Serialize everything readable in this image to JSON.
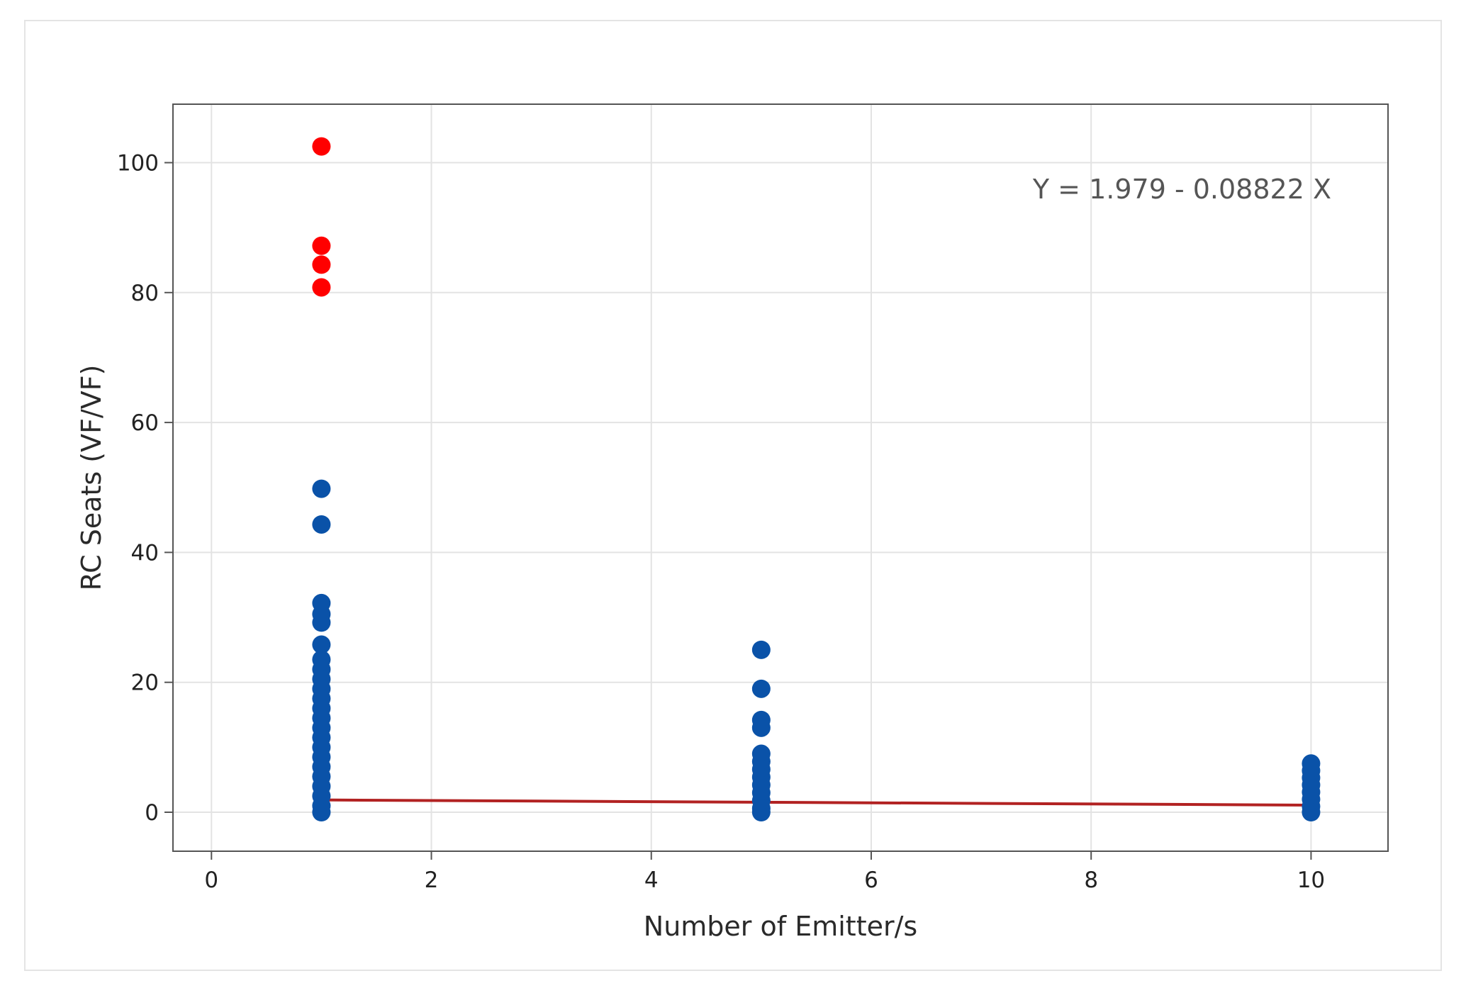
{
  "chart_data": {
    "type": "scatter",
    "title": "",
    "xlabel": "Number of Emitter/s",
    "ylabel": "RC Seats (VF/VF)",
    "xlim": [
      -0.35,
      10.7
    ],
    "ylim": [
      -6,
      109
    ],
    "xticks": [
      0,
      2,
      4,
      6,
      8,
      10
    ],
    "yticks": [
      0,
      20,
      40,
      60,
      80,
      100
    ],
    "grid": true,
    "legend": "none",
    "annotation": "Y = 1.979 - 0.08822 X",
    "series": [
      {
        "color": "#0a52a8",
        "points": [
          [
            1,
            49.8
          ],
          [
            1,
            44.3
          ],
          [
            1,
            32.2
          ],
          [
            1,
            30.5
          ],
          [
            1,
            29.2
          ],
          [
            1,
            25.8
          ],
          [
            1,
            23.5
          ],
          [
            1,
            22
          ],
          [
            1,
            20.5
          ],
          [
            1,
            19
          ],
          [
            1,
            17.5
          ],
          [
            1,
            16
          ],
          [
            1,
            14.5
          ],
          [
            1,
            13
          ],
          [
            1,
            11.5
          ],
          [
            1,
            10
          ],
          [
            1,
            8.5
          ],
          [
            1,
            7
          ],
          [
            1,
            5.5
          ],
          [
            1,
            4
          ],
          [
            1,
            2.5
          ],
          [
            1,
            1
          ],
          [
            1,
            0
          ],
          [
            5,
            25
          ],
          [
            5,
            19
          ],
          [
            5,
            14.2
          ],
          [
            5,
            13
          ],
          [
            5,
            9
          ],
          [
            5,
            7.8
          ],
          [
            5,
            6.6
          ],
          [
            5,
            5.4
          ],
          [
            5,
            4.2
          ],
          [
            5,
            3
          ],
          [
            5,
            1.8
          ],
          [
            5,
            0.6
          ],
          [
            5,
            0
          ],
          [
            10,
            7.5
          ],
          [
            10,
            6.4
          ],
          [
            10,
            5.3
          ],
          [
            10,
            4.2
          ],
          [
            10,
            3.1
          ],
          [
            10,
            2
          ],
          [
            10,
            0.9
          ],
          [
            10,
            0
          ]
        ]
      },
      {
        "color": "#ff0000",
        "points": [
          [
            1,
            102.5
          ],
          [
            1,
            87.2
          ],
          [
            1,
            84.3
          ],
          [
            1,
            80.8
          ]
        ]
      }
    ],
    "fit_line": {
      "x": [
        1,
        10
      ],
      "y": [
        1.891,
        1.097
      ],
      "color": "#b22222"
    }
  }
}
